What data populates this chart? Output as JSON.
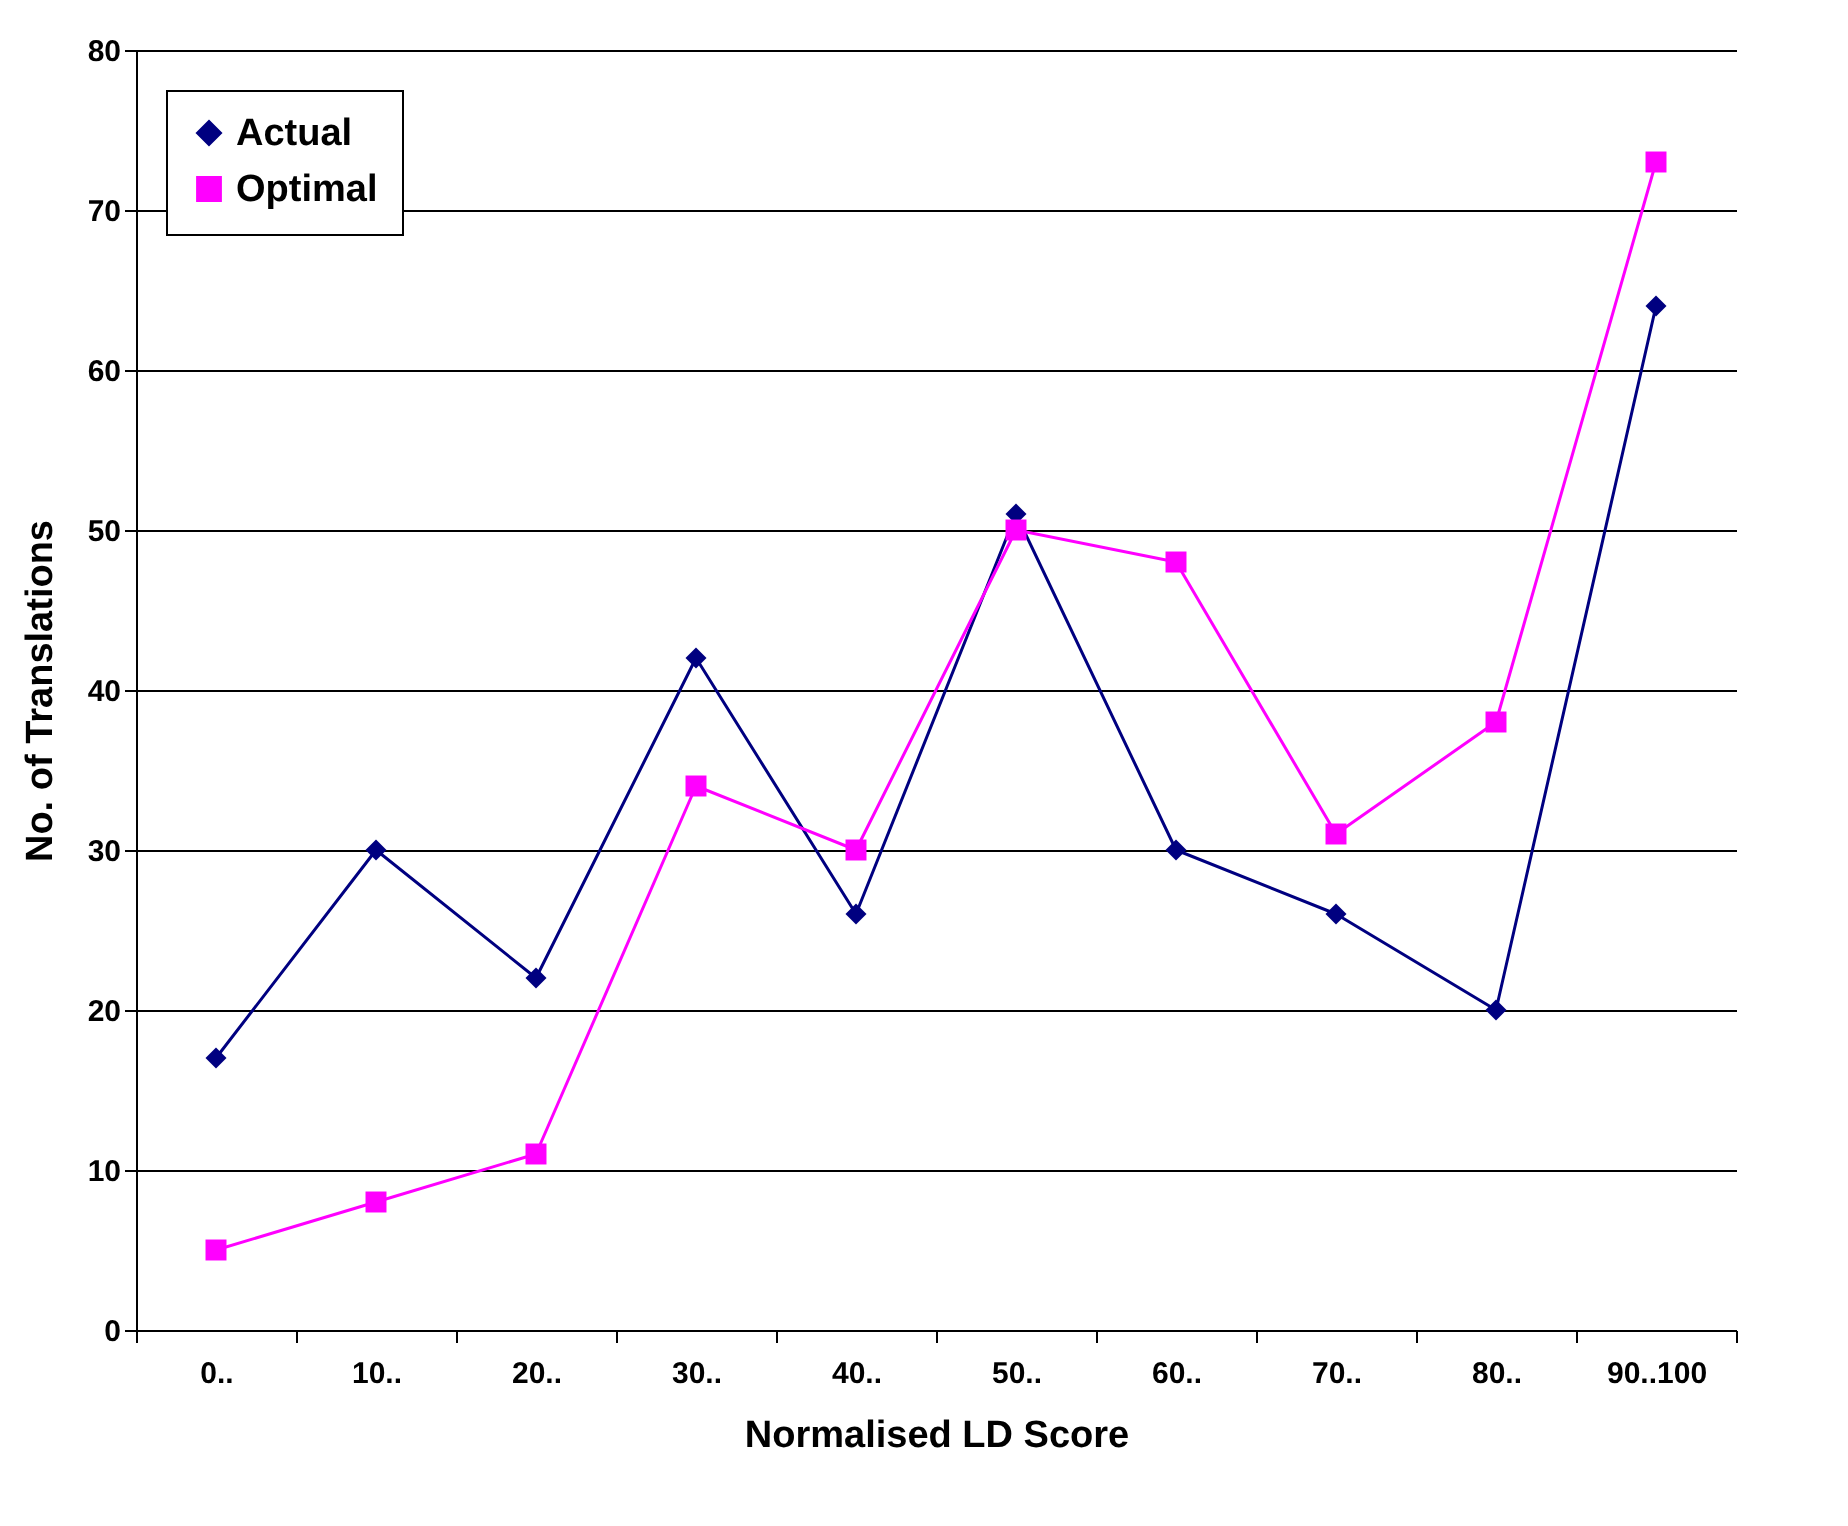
{
  "chart_data": {
    "type": "line",
    "xlabel": "Normalised LD Score",
    "ylabel": "No. of Translations",
    "categories": [
      "0..",
      "10..",
      "20..",
      "30..",
      "40..",
      "50..",
      "60..",
      "70..",
      "80..",
      "90..100"
    ],
    "series": [
      {
        "name": "Actual",
        "color": "#000080",
        "marker": "diamond",
        "values": [
          17,
          30,
          22,
          42,
          26,
          51,
          30,
          26,
          20,
          64
        ]
      },
      {
        "name": "Optimal",
        "color": "#ff00ff",
        "marker": "square",
        "values": [
          5,
          8,
          11,
          34,
          30,
          50,
          48,
          31,
          38,
          73
        ]
      }
    ],
    "ylim": [
      0,
      80
    ],
    "yticks": [
      0,
      10,
      20,
      30,
      40,
      50,
      60,
      70,
      80
    ],
    "grid": "y",
    "legend": "top left",
    "line_style": "solid"
  }
}
